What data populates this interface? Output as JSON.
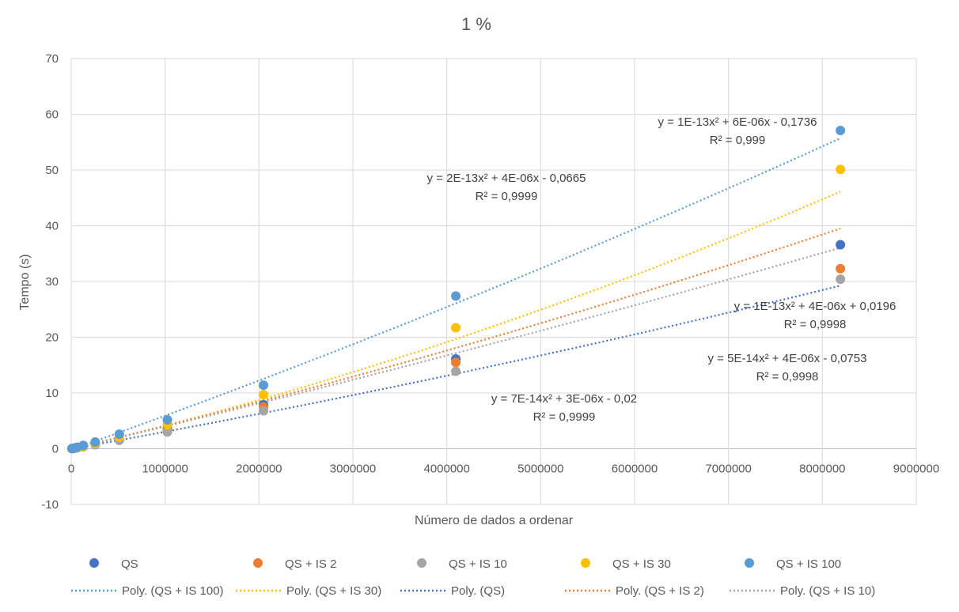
{
  "chart_data": {
    "type": "scatter",
    "title": "1 %",
    "xlabel": "Número de dados a ordenar",
    "ylabel": "Tempo (s)",
    "xlim": [
      0,
      9000000
    ],
    "ylim": [
      -10,
      70
    ],
    "x_ticks": [
      0,
      1000000,
      2000000,
      3000000,
      4000000,
      5000000,
      6000000,
      7000000,
      8000000,
      9000000
    ],
    "y_ticks": [
      -10,
      0,
      10,
      20,
      30,
      40,
      50,
      60,
      70
    ],
    "x_tick_labels": [
      "0",
      "1000000",
      "2000000",
      "3000000",
      "4000000",
      "5000000",
      "6000000",
      "7000000",
      "8000000",
      "9000000"
    ],
    "y_tick_labels": [
      "-10",
      "0",
      "10",
      "20",
      "30",
      "40",
      "50",
      "60",
      "70"
    ],
    "grid": true,
    "legend_position": "bottom",
    "x": [
      8000,
      16000,
      32000,
      64000,
      128000,
      256000,
      512000,
      1024000,
      2048000,
      4096000,
      8192000
    ],
    "series": [
      {
        "name": "QS",
        "color": "#4472C4",
        "values": [
          0.02,
          0.04,
          0.08,
          0.18,
          0.4,
          0.85,
          1.8,
          3.7,
          7.9,
          16.1,
          36.6
        ]
      },
      {
        "name": "QS + IS 2",
        "color": "#ED7D31",
        "values": [
          0.02,
          0.04,
          0.08,
          0.16,
          0.35,
          0.75,
          1.6,
          3.3,
          7.5,
          15.5,
          32.3
        ]
      },
      {
        "name": "QS + IS 10",
        "color": "#A5A5A5",
        "values": [
          0.02,
          0.04,
          0.08,
          0.15,
          0.33,
          0.7,
          1.5,
          3.0,
          6.8,
          13.9,
          30.4
        ]
      },
      {
        "name": "QS + IS 30",
        "color": "#FFC000",
        "values": [
          0.02,
          0.05,
          0.1,
          0.2,
          0.45,
          0.95,
          2.1,
          4.3,
          9.7,
          21.7,
          50.1
        ]
      },
      {
        "name": "QS + IS 100",
        "color": "#5B9BD5",
        "values": [
          0.03,
          0.06,
          0.12,
          0.28,
          0.6,
          1.2,
          2.6,
          5.2,
          11.4,
          27.4,
          57.1
        ]
      }
    ],
    "trendlines": [
      {
        "name": "Poly. (QS + IS 100)",
        "series": "QS + IS 100",
        "color": "#5B9BD5",
        "coeffs": [
          1e-13,
          6e-06,
          -0.1736
        ],
        "equation": "y = 1E-13x² + 6E-06x - 0,1736",
        "r2": "R² = 0,999"
      },
      {
        "name": "Poly. (QS + IS 30)",
        "series": "QS + IS 30",
        "color": "#FFC000",
        "coeffs": [
          2e-13,
          4e-06,
          -0.0665
        ],
        "equation": "y = 2E-13x² + 4E-06x - 0,0665",
        "r2": "R² = 0,9999"
      },
      {
        "name": "Poly. (QS)",
        "series": "QS",
        "color": "#4472C4",
        "coeffs": [
          7e-14,
          3e-06,
          -0.02
        ],
        "equation": "y = 7E-14x² + 3E-06x - 0,02",
        "r2": "R² = 0,9999"
      },
      {
        "name": "Poly. (QS + IS 2)",
        "series": "QS + IS 2",
        "color": "#ED7D31",
        "coeffs": [
          1e-13,
          4e-06,
          0.0196
        ],
        "equation": "y = 1E-13x² + 4E-06x + 0,0196",
        "r2": "R² = 0,9998"
      },
      {
        "name": "Poly. (QS + IS 10)",
        "series": "QS + IS 10",
        "color": "#A5A5A5",
        "coeffs": [
          5e-14,
          4e-06,
          -0.0753
        ],
        "equation": "y = 5E-14x² + 4E-06x - 0,0753",
        "r2": "R² = 0,9998"
      }
    ]
  }
}
